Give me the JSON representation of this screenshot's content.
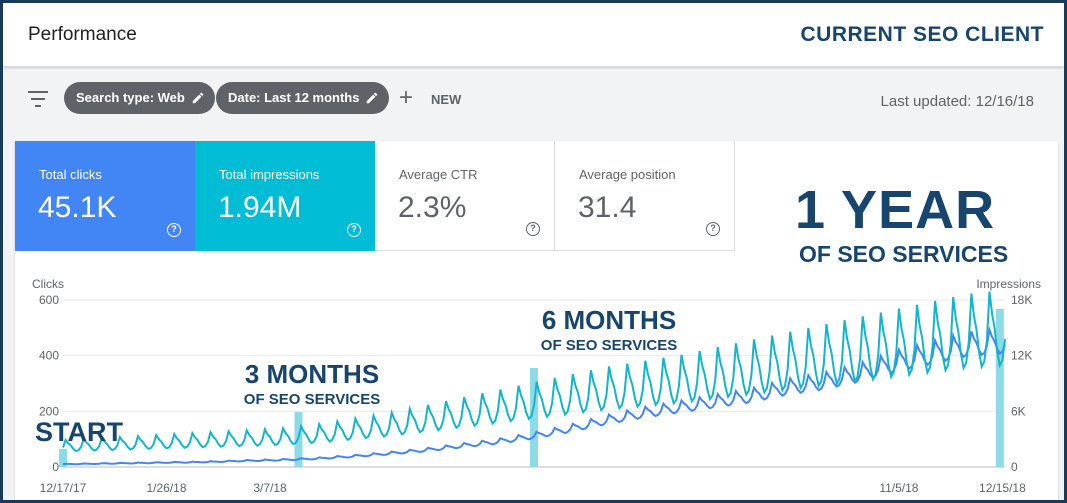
{
  "header": {
    "title": "Performance",
    "client_label": "CURRENT SEO CLIENT"
  },
  "filters": {
    "filter_icon": "filter-list-icon",
    "chips": [
      {
        "label": "Search type: Web",
        "icon": "edit-icon"
      },
      {
        "label": "Date: Last 12 months",
        "icon": "edit-icon"
      }
    ],
    "new_label": "NEW",
    "last_updated": "Last updated: 12/16/18"
  },
  "metrics": [
    {
      "label": "Total clicks",
      "value": "45.1K",
      "color": "#4285f4",
      "active": true
    },
    {
      "label": "Total impressions",
      "value": "1.94M",
      "color": "#00bcd4",
      "active": true
    },
    {
      "label": "Average CTR",
      "value": "2.3%",
      "active": false
    },
    {
      "label": "Average position",
      "value": "31.4",
      "active": false
    }
  ],
  "overlay": {
    "year_big": "1 YEAR",
    "year_sub": "OF SEO SERVICES",
    "start": "START",
    "three_big": "3 MONTHS",
    "three_sub": "OF SEO SERVICES",
    "six_big": "6 MONTHS",
    "six_sub": "OF SEO SERVICES"
  },
  "chart_data": {
    "type": "line",
    "y_left_label": "Clicks",
    "y_right_label": "Impressions",
    "y_left_ticks": [
      "0",
      "200",
      "400",
      "600"
    ],
    "y_left_lim": [
      0,
      600
    ],
    "y_right_ticks": [
      "0",
      "6K",
      "12K",
      "18K"
    ],
    "y_right_lim": [
      0,
      18000
    ],
    "x_tick_labels": [
      "12/17/17",
      "1/26/18",
      "3/7/18",
      "11/5/18",
      "12/15/18"
    ],
    "x_tick_days": [
      0,
      40,
      80,
      323,
      363
    ],
    "milestones_days": [
      0,
      91,
      182,
      362
    ],
    "grid": true,
    "series": [
      {
        "name": "Clicks",
        "axis": "left",
        "color": "#4285f4",
        "days": [
          0,
          14,
          28,
          42,
          56,
          70,
          84,
          98,
          112,
          126,
          140,
          154,
          168,
          182,
          196,
          210,
          224,
          238,
          252,
          266,
          280,
          294,
          308,
          322,
          336,
          350,
          364
        ],
        "values": [
          10,
          12,
          14,
          16,
          18,
          22,
          25,
          30,
          38,
          48,
          60,
          75,
          90,
          110,
          135,
          165,
          190,
          210,
          230,
          250,
          280,
          300,
          330,
          370,
          400,
          430,
          440
        ]
      },
      {
        "name": "Impressions",
        "axis": "right",
        "color": "#12b5cb",
        "days": [
          0,
          14,
          28,
          42,
          56,
          70,
          84,
          98,
          112,
          126,
          140,
          154,
          168,
          182,
          196,
          210,
          224,
          238,
          252,
          266,
          280,
          294,
          308,
          322,
          336,
          350,
          364
        ],
        "values": [
          2100,
          2250,
          2400,
          2550,
          2700,
          2850,
          3000,
          3300,
          3750,
          4200,
          4800,
          5400,
          6000,
          6600,
          7200,
          7800,
          8250,
          8700,
          9300,
          9900,
          10500,
          11100,
          11700,
          12300,
          12900,
          13500,
          13800
        ]
      }
    ]
  }
}
